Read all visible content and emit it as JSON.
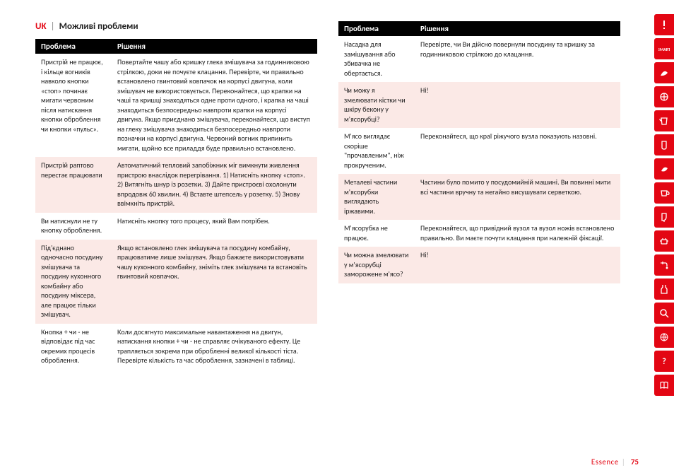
{
  "lang_code": "UK",
  "section_title": "Можливі проблеми",
  "headers": {
    "problem": "Проблема",
    "solution": "Рішення"
  },
  "left_rows": [
    {
      "shade": false,
      "problem": "Пристрій не працює, і кільце вогників навколо кнопки «стоп» починає мигати червоним після натискання кнопки оброблення чи кнопки «пульс».",
      "solution": "Повертайте чашу або кришку глека змішувача за годинниковою стрілкою, доки не почуєте клацання. Перевірте, чи правильно встановлено гвинтовий ковпачок на корпусі двигуна, коли змішувач не використовується. Переконайтеся, що крапки на чаші та кришці знаходяться одне проти одного, і крапка на чаші знаходиться безпосередньо навпроти крапки на корпусі двигуна. Якщо приєднано змішувача, переконайтеся, що виступ на глеку змішувача знаходиться безпосередньо навпроти позначки на корпусі двигуна. Червоний вогник припинить мигати, щойно все приладдя буде правильно встановлено."
    },
    {
      "shade": true,
      "problem": "Пристрій раптово перестає працювати",
      "solution": "Автоматичний тепловий запобіжник міг вимкнути живлення пристрою внаслідок перегрівання. 1) Натисніть кнопку «стоп». 2) Витягніть шнур із розетки. 3) Дайте пристроєві охолонути впродовж 60 хвилин. 4) Вставте штепсель у розетку. 5) Знову ввімкніть пристрій."
    },
    {
      "shade": false,
      "problem": "Ви натиснули не ту кнопку оброблення.",
      "solution": "Натисніть кнопку того процесу, який Вам потрібен."
    },
    {
      "shade": true,
      "problem": "Під'єднано одночасно посудину змішувача та посудину кухонного комбайну або посудину міксера, але працює тільки змішувач.",
      "solution": "Якщо встановлено глек змішувача та посудину комбайну, працюватиме лише змішувач. Якщо бажаєте використовувати чашу кухонного комбайну, зніміть глек змішувача та встановіть гвинтовий ковпачок."
    },
    {
      "shade": false,
      "problem": "Кнопка + чи - не відповідає під час окремих процесів оброблення.",
      "solution": "Коли досягнуто максимальне навантаження на двигун, натискання кнопки + чи - не справляє очікуваного ефекту. Це трапляється зокрема при обробленні великої кількості тіста. Перевірте кількість та час оброблення, зазначені в таблиці."
    }
  ],
  "right_rows": [
    {
      "shade": false,
      "problem": "Насадка для замішування або збивачка не обертається.",
      "solution": "Перевірте, чи Ви дійсно повернули посудину та кришку за годинниковою стрілкою до клацання."
    },
    {
      "shade": true,
      "problem": "Чи можу я змелювати кістки чи шкіру бекону у м'ясорубці?",
      "solution": "Ні!"
    },
    {
      "shade": false,
      "problem": "М'ясо виглядає скоріше \"прочавленим\", ніж прокрученим.",
      "solution": "Переконайтеся, що краї ріжучого вузла показують назовні."
    },
    {
      "shade": true,
      "problem": "Металеві частини м'ясорубки виглядають іржавими.",
      "solution": "Частини було помито у посудомийній машині. Ви повинні мити всі частини вручну та негайно висушувати серветкою."
    },
    {
      "shade": false,
      "problem": "М'ясорубка не працює.",
      "solution": "Переконайтеся, що привідний вузол та вузол ножів встановлено правильно. Ви маєте почути клацання при належній фіксації."
    },
    {
      "shade": true,
      "problem": "Чи можна змелювати у м'ясорубці заморожене м'ясо?",
      "solution": "Ні!"
    }
  ],
  "sidebar_icons": [
    "alert",
    "smart",
    "leaf",
    "blade",
    "pitcher",
    "jug",
    "leaf2",
    "cup",
    "grinder",
    "pot",
    "tap",
    "apron",
    "search",
    "globe",
    "question",
    "book"
  ],
  "footer": {
    "brand": "Essence",
    "page": "75"
  }
}
